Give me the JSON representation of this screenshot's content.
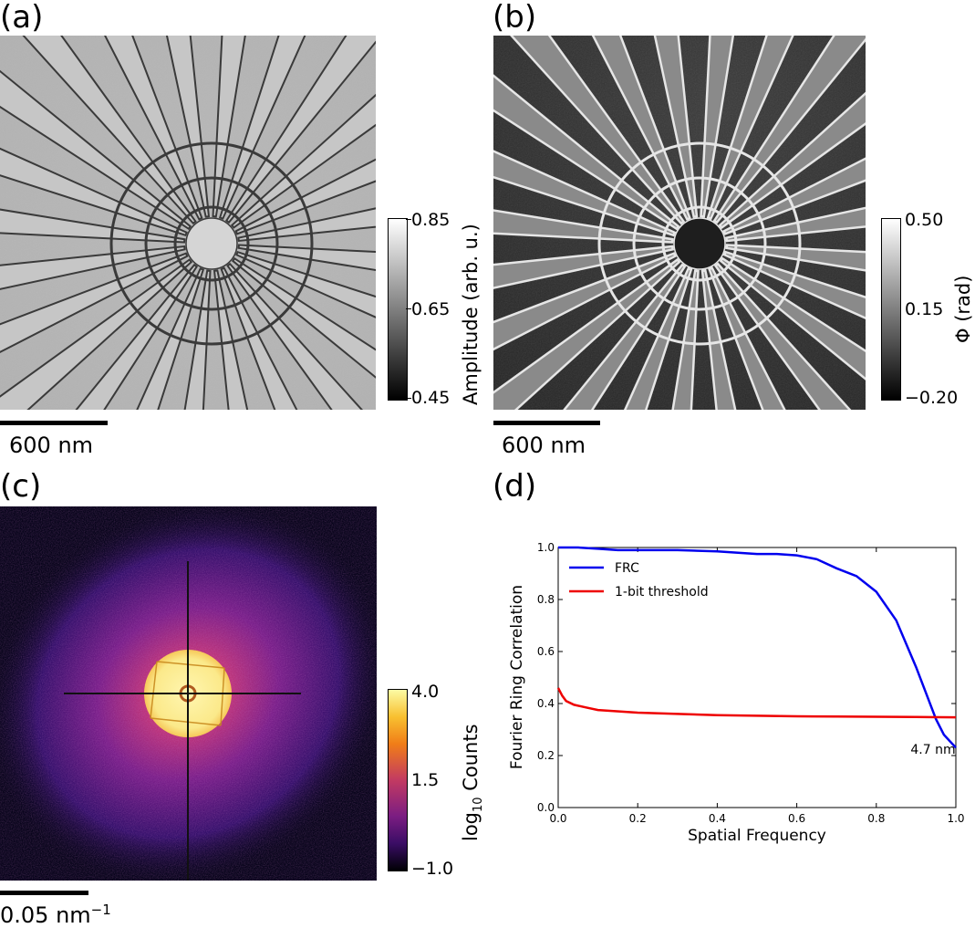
{
  "panels": {
    "a": {
      "label": "(a)",
      "colorbar": {
        "title": "Amplitude (arb. u.)",
        "ticks": [
          "0.85",
          "0.65",
          "0.45"
        ]
      },
      "scalebar": "600 nm"
    },
    "b": {
      "label": "(b)",
      "colorbar": {
        "title": "Φ (rad)",
        "ticks": [
          "0.50",
          "0.15",
          "−0.20"
        ]
      },
      "scalebar": "600 nm"
    },
    "c": {
      "label": "(c)",
      "colorbar": {
        "title_main": "log",
        "title_sub": "10",
        "title_rest": " Counts",
        "ticks": [
          "4.0",
          "1.5",
          "−1.0"
        ]
      },
      "scalebar_main": "0.05 nm",
      "scalebar_sup": "−1"
    },
    "d": {
      "label": "(d)"
    }
  },
  "chart_data": {
    "type": "line",
    "xlabel": "Spatial Frequency",
    "ylabel": "Fourier Ring Correlation",
    "xlim": [
      0,
      1
    ],
    "ylim": [
      0,
      1
    ],
    "xticks": [
      "0.0",
      "0.2",
      "0.4",
      "0.6",
      "0.8",
      "1.0"
    ],
    "yticks": [
      "0.0",
      "0.2",
      "0.4",
      "0.6",
      "0.8",
      "1.0"
    ],
    "legend_position": "top-left",
    "annotation": {
      "text": "4.7 nm",
      "x": 0.955,
      "y": 0.27
    },
    "series": [
      {
        "name": "FRC",
        "color": "#0000ee",
        "x": [
          0,
          0.05,
          0.1,
          0.15,
          0.2,
          0.3,
          0.4,
          0.5,
          0.55,
          0.6,
          0.65,
          0.7,
          0.75,
          0.8,
          0.85,
          0.9,
          0.93,
          0.95,
          0.97,
          1.0
        ],
        "y": [
          1.0,
          1.0,
          0.995,
          0.99,
          0.99,
          0.99,
          0.985,
          0.975,
          0.975,
          0.97,
          0.955,
          0.92,
          0.89,
          0.83,
          0.72,
          0.54,
          0.42,
          0.34,
          0.28,
          0.23
        ]
      },
      {
        "name": "1-bit threshold",
        "color": "#ee0000",
        "x": [
          0,
          0.01,
          0.02,
          0.04,
          0.07,
          0.1,
          0.2,
          0.3,
          0.4,
          0.5,
          0.6,
          0.7,
          0.8,
          0.9,
          1.0
        ],
        "y": [
          0.46,
          0.43,
          0.41,
          0.395,
          0.385,
          0.375,
          0.365,
          0.36,
          0.355,
          0.353,
          0.351,
          0.35,
          0.349,
          0.348,
          0.347
        ]
      }
    ]
  }
}
